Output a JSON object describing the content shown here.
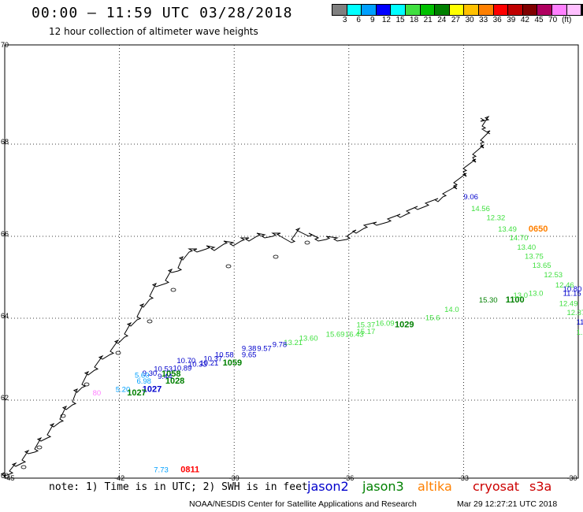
{
  "header": {
    "title": "00:00 – 11:59 UTC 03/28/2018",
    "subtitle": "12 hour collection of altimeter wave heights"
  },
  "legend": {
    "colors": [
      "#808080",
      "#00ffff",
      "#00a0ff",
      "#0000ff",
      "#00ffff",
      "#40e040",
      "#00c000",
      "#008000",
      "#ffff00",
      "#ffc000",
      "#ff8000",
      "#ff0000",
      "#c00000",
      "#800000",
      "#b00060",
      "#ff80ff",
      "#ffc0ff",
      "#000000"
    ],
    "labels": [
      "3",
      "6",
      "9",
      "12",
      "15",
      "18",
      "21",
      "24",
      "27",
      "30",
      "33",
      "36",
      "39",
      "42",
      "45",
      "70",
      "(ft)"
    ]
  },
  "axes": {
    "lat_labels": [
      "70",
      "68",
      "66",
      "64",
      "62",
      "60"
    ],
    "lon_labels": [
      "-45",
      "-42",
      "-39",
      "-36",
      "-33",
      "-30"
    ]
  },
  "observations": [
    {
      "text": "9.06",
      "color": "#0000cc",
      "lon": -33.0,
      "lat": 66.8
    },
    {
      "text": "14.56",
      "color": "#40e040",
      "lon": -32.8,
      "lat": 66.55
    },
    {
      "text": "12.32",
      "color": "#40e040",
      "lon": -32.4,
      "lat": 66.35
    },
    {
      "text": "13.49",
      "color": "#40e040",
      "lon": -32.1,
      "lat": 66.1
    },
    {
      "text": "0650",
      "color": "#ff8000",
      "lon": -31.3,
      "lat": 66.1,
      "bold": true
    },
    {
      "text": "14.70",
      "color": "#40e040",
      "lon": -31.8,
      "lat": 65.9
    },
    {
      "text": "13.40",
      "color": "#40e040",
      "lon": -31.6,
      "lat": 65.67
    },
    {
      "text": "13.75",
      "color": "#40e040",
      "lon": -31.4,
      "lat": 65.45
    },
    {
      "text": "13.65",
      "color": "#40e040",
      "lon": -31.2,
      "lat": 65.23
    },
    {
      "text": "12.53",
      "color": "#40e040",
      "lon": -30.9,
      "lat": 65.0
    },
    {
      "text": "12.46",
      "color": "#40e040",
      "lon": -30.6,
      "lat": 64.75
    },
    {
      "text": "10.80",
      "color": "#0000cc",
      "lon": -30.4,
      "lat": 64.65
    },
    {
      "text": "11.15",
      "color": "#0000cc",
      "lon": -30.4,
      "lat": 64.55
    },
    {
      "text": "12.49",
      "color": "#40e040",
      "lon": -30.5,
      "lat": 64.3
    },
    {
      "text": "12.37",
      "color": "#40e040",
      "lon": -30.3,
      "lat": 64.08
    },
    {
      "text": "11.",
      "color": "#0000cc",
      "lon": -30.05,
      "lat": 63.85
    },
    {
      "text": "1.",
      "color": "#40e040",
      "lon": -30.05,
      "lat": 63.6
    },
    {
      "text": "15.30",
      "color": "#008000",
      "lon": -32.6,
      "lat": 64.38
    },
    {
      "text": "1100",
      "color": "#008000",
      "lon": -31.9,
      "lat": 64.38,
      "bold": true
    },
    {
      "text": "13.0",
      "color": "#40e040",
      "lon": -31.7,
      "lat": 64.5
    },
    {
      "text": "13.0",
      "color": "#40e040",
      "lon": -31.3,
      "lat": 64.55
    },
    {
      "text": "14.0",
      "color": "#40e040",
      "lon": -33.5,
      "lat": 64.15
    },
    {
      "text": "15.6",
      "color": "#40e040",
      "lon": -34.0,
      "lat": 63.95
    },
    {
      "text": "1029",
      "color": "#008000",
      "lon": -34.8,
      "lat": 63.78,
      "bold": true
    },
    {
      "text": "16.09",
      "color": "#40e040",
      "lon": -35.3,
      "lat": 63.82
    },
    {
      "text": "15.37",
      "color": "#40e040",
      "lon": -35.8,
      "lat": 63.78
    },
    {
      "text": "15.17",
      "color": "#40e040",
      "lon": -35.8,
      "lat": 63.62
    },
    {
      "text": "16.43",
      "color": "#40e040",
      "lon": -36.1,
      "lat": 63.55
    },
    {
      "text": "15.69",
      "color": "#40e040",
      "lon": -36.6,
      "lat": 63.55
    },
    {
      "text": "13.60",
      "color": "#40e040",
      "lon": -37.3,
      "lat": 63.45
    },
    {
      "text": "13.21",
      "color": "#40e040",
      "lon": -37.7,
      "lat": 63.35
    },
    {
      "text": "9.78",
      "color": "#0000cc",
      "lon": -38.0,
      "lat": 63.3
    },
    {
      "text": "9.57",
      "color": "#0000cc",
      "lon": -38.4,
      "lat": 63.2
    },
    {
      "text": "9.38",
      "color": "#0000cc",
      "lon": -38.8,
      "lat": 63.2
    },
    {
      "text": "9.65",
      "color": "#0000cc",
      "lon": -38.8,
      "lat": 63.05
    },
    {
      "text": "10.58",
      "color": "#0000cc",
      "lon": -39.5,
      "lat": 63.05
    },
    {
      "text": "10.37",
      "color": "#0000cc",
      "lon": -39.8,
      "lat": 62.95
    },
    {
      "text": "1059",
      "color": "#008000",
      "lon": -39.3,
      "lat": 62.85,
      "bold": true
    },
    {
      "text": "10.21",
      "color": "#0000cc",
      "lon": -39.9,
      "lat": 62.85
    },
    {
      "text": "10.33",
      "color": "#0000cc",
      "lon": -40.2,
      "lat": 62.82
    },
    {
      "text": "10.70",
      "color": "#0000cc",
      "lon": -40.5,
      "lat": 62.9
    },
    {
      "text": "10.89",
      "color": "#0000cc",
      "lon": -40.6,
      "lat": 62.72
    },
    {
      "text": "10.53",
      "color": "#0000cc",
      "lon": -41.1,
      "lat": 62.7
    },
    {
      "text": "9.30",
      "color": "#0000cc",
      "lon": -41.4,
      "lat": 62.6
    },
    {
      "text": "1058",
      "color": "#008000",
      "lon": -40.9,
      "lat": 62.58,
      "bold": true
    },
    {
      "text": "9.44",
      "color": "#0000cc",
      "lon": -41.0,
      "lat": 62.52
    },
    {
      "text": "1028",
      "color": "#008000",
      "lon": -40.8,
      "lat": 62.4,
      "bold": true
    },
    {
      "text": "5.60",
      "color": "#00a0ff",
      "lon": -41.6,
      "lat": 62.55
    },
    {
      "text": "6.98",
      "color": "#00a0ff",
      "lon": -41.55,
      "lat": 62.4
    },
    {
      "text": "1027",
      "color": "#0000cc",
      "lon": -41.4,
      "lat": 62.2,
      "bold": true
    },
    {
      "text": "5.20",
      "color": "#00a0ff",
      "lon": -42.1,
      "lat": 62.2
    },
    {
      "text": "1027",
      "color": "#008000",
      "lon": -41.8,
      "lat": 62.12,
      "bold": true
    },
    {
      "text": "80",
      "color": "#ff80ff",
      "lon": -42.7,
      "lat": 62.12
    },
    {
      "text": "7.73",
      "color": "#00a0ff",
      "lon": -41.1,
      "lat": 60.15
    },
    {
      "text": "0811",
      "color": "#ff0000",
      "lon": -40.4,
      "lat": 60.15,
      "bold": true
    }
  ],
  "footer": {
    "note": "note: 1) Time is in UTC; 2) SWH is in feet",
    "satellites": [
      {
        "name": "jason2",
        "color": "#0000cc"
      },
      {
        "name": "jason3",
        "color": "#008000"
      },
      {
        "name": "altika",
        "color": "#ff8000"
      },
      {
        "name": "cryosat",
        "color": "#cc0000"
      },
      {
        "name": "s3a",
        "color": "#cc0000"
      }
    ],
    "credit": "NOAA/NESDIS Center for Satellite Applications and Research",
    "timestamp": "Mar 29 12:27:21 UTC 2018"
  }
}
